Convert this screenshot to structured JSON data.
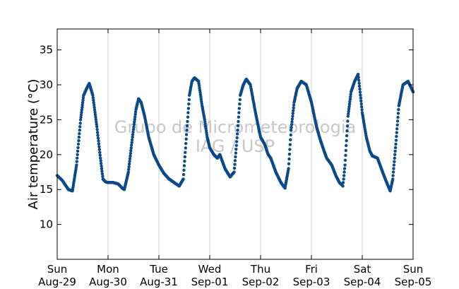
{
  "chart_data": {
    "type": "scatter",
    "title": "",
    "xlabel": "",
    "ylabel": "Air temperature (°C)",
    "ylim": [
      5,
      38
    ],
    "yticks": [
      10,
      15,
      20,
      25,
      30,
      35
    ],
    "xlim": [
      0,
      7
    ],
    "xticks": [
      {
        "day": 0,
        "weekday": "Sun",
        "date": "Aug-29"
      },
      {
        "day": 1,
        "weekday": "Mon",
        "date": "Aug-30"
      },
      {
        "day": 2,
        "weekday": "Tue",
        "date": "Aug-31"
      },
      {
        "day": 3,
        "weekday": "Wed",
        "date": "Sep-01"
      },
      {
        "day": 4,
        "weekday": "Thu",
        "date": "Sep-02"
      },
      {
        "day": 5,
        "weekday": "Fri",
        "date": "Sep-03"
      },
      {
        "day": 6,
        "weekday": "Sat",
        "date": "Sep-04"
      },
      {
        "day": 7,
        "weekday": "Sun",
        "date": "Sep-05"
      }
    ],
    "grid": "vertical",
    "marker_color": "#0b4a8a",
    "watermark": [
      "Grupo de Micrometeorologia",
      "IAG / USP"
    ],
    "series": [
      {
        "x": [
          0.0,
          0.1,
          0.22,
          0.3,
          0.38,
          0.46,
          0.52,
          0.58,
          0.63,
          0.7,
          0.78,
          0.85,
          0.9,
          0.95,
          1.0,
          1.1,
          1.2,
          1.28,
          1.32,
          1.4,
          1.48,
          1.55,
          1.6,
          1.65,
          1.72,
          1.8,
          1.9,
          2.0,
          2.1,
          2.2,
          2.3,
          2.4,
          2.48,
          2.55,
          2.6,
          2.65,
          2.7,
          2.78,
          2.85,
          2.9,
          2.95,
          3.0,
          3.08,
          3.15,
          3.2,
          3.3,
          3.4,
          3.48,
          3.55,
          3.6,
          3.66,
          3.72,
          3.8,
          3.9,
          4.0,
          4.08,
          4.15,
          4.2,
          4.3,
          4.4,
          4.48,
          4.55,
          4.6,
          4.66,
          4.72,
          4.8,
          4.9,
          5.0,
          5.1,
          5.18,
          5.25,
          5.3,
          5.4,
          5.48,
          5.55,
          5.62,
          5.66,
          5.72,
          5.78,
          5.85,
          5.92,
          6.0,
          6.08,
          6.15,
          6.2,
          6.3,
          6.4,
          6.48,
          6.55,
          6.6,
          6.66,
          6.72,
          6.8,
          6.9,
          7.0
        ],
        "y": [
          17.0,
          16.3,
          15.0,
          14.8,
          18.5,
          25.0,
          28.5,
          29.5,
          30.2,
          28.5,
          24.0,
          19.5,
          16.5,
          16.1,
          16.0,
          16.0,
          15.8,
          15.2,
          15.0,
          17.5,
          22.5,
          26.5,
          28.0,
          27.5,
          25.5,
          22.5,
          20.0,
          18.5,
          17.3,
          16.5,
          16.0,
          15.5,
          16.5,
          23.5,
          28.5,
          30.5,
          31.0,
          30.5,
          27.0,
          25.0,
          22.5,
          21.0,
          20.0,
          19.5,
          20.0,
          18.0,
          16.8,
          17.5,
          23.5,
          28.5,
          30.0,
          30.8,
          30.0,
          26.0,
          22.5,
          21.5,
          20.0,
          19.5,
          17.5,
          16.0,
          15.2,
          18.0,
          23.5,
          27.5,
          29.5,
          30.5,
          30.0,
          27.5,
          24.0,
          22.0,
          20.5,
          19.5,
          18.5,
          17.0,
          16.0,
          15.5,
          18.5,
          25.5,
          29.0,
          30.5,
          31.5,
          26.0,
          22.5,
          20.5,
          19.8,
          19.5,
          17.5,
          16.0,
          14.8,
          16.5,
          21.5,
          27.0,
          30.0,
          30.5,
          29.0
        ]
      }
    ]
  }
}
